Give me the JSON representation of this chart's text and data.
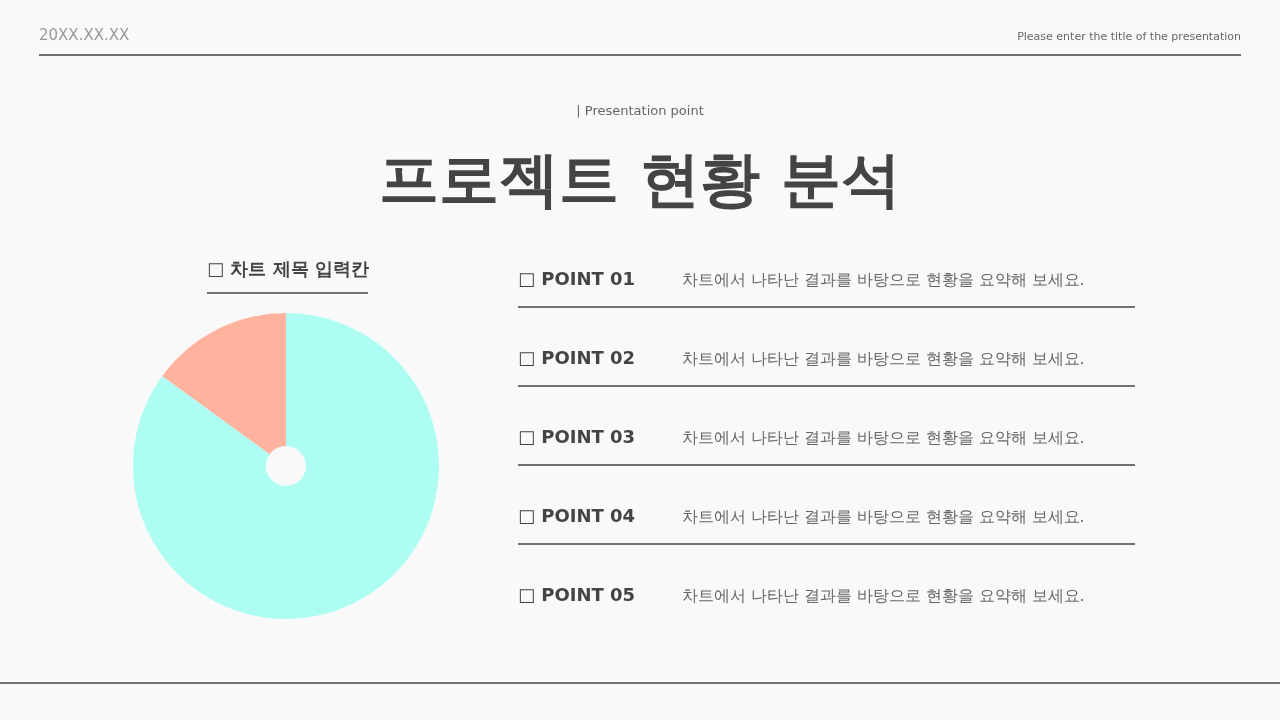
{
  "chart_data": {
    "type": "donut",
    "title": "프로젝트 현황 분석",
    "subtitle": "|  Presentation point",
    "categories": [
      null,
      null
    ],
    "values": [
      85,
      15
    ],
    "colors": [
      "#aefdf3",
      "#ffb29d"
    ],
    "annotations": [
      "20XX.XX.XX",
      "Please enter the title of the presentation",
      "□  차트 제목 입력칸",
      "□  POINT 01",
      "차트에서 나타난 결과를 바탕으로 현황을 요약해 보세요.",
      "□  POINT 02",
      "차트에서 나타난 결과를 바탕으로 현황을 요약해 보세요.",
      "□  POINT 03",
      "차트에서 나타난 결과를 바탕으로 현황을 요약해 보세요.",
      "□  POINT 04",
      "차트에서 나타난 결과를 바탕으로 현황을 요약해 보세요.",
      "□  POINT 05",
      "차트에서 나타난 결과를 바탕으로 현황을 요약해 보세요."
    ]
  }
}
